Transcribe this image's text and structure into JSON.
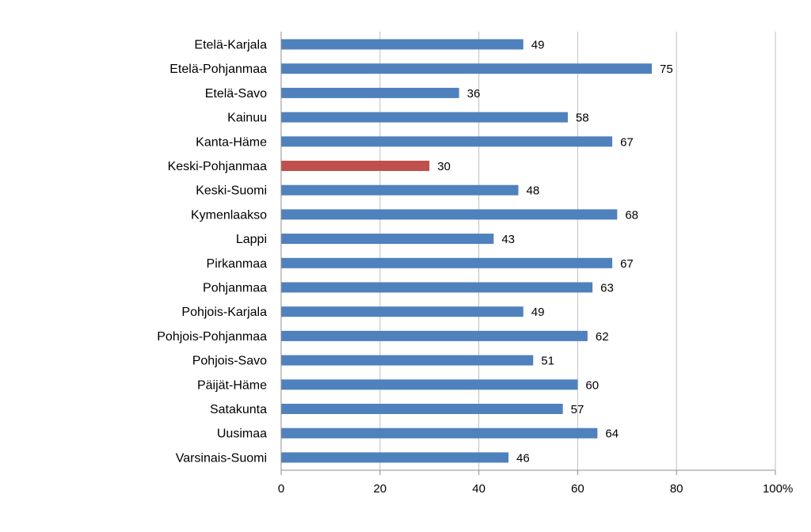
{
  "chart_data": {
    "type": "bar",
    "orientation": "horizontal",
    "title": "",
    "xlabel": "",
    "ylabel": "",
    "x_unit_label": "%",
    "xlim": [
      0,
      100
    ],
    "x_ticks": [
      "0",
      "20",
      "40",
      "60",
      "80",
      "100"
    ],
    "grid": true,
    "legend": "none",
    "categories": [
      "Etelä-Karjala",
      "Etelä-Pohjanmaa",
      "Etelä-Savo",
      "Kainuu",
      "Kanta-Häme",
      "Keski-Pohjanmaa",
      "Keski-Suomi",
      "Kymenlaakso",
      "Lappi",
      "Pirkanmaa",
      "Pohjanmaa",
      "Pohjois-Karjala",
      "Pohjois-Pohjanmaa",
      "Pohjois-Savo",
      "Päijät-Häme",
      "Satakunta",
      "Uusimaa",
      "Varsinais-Suomi"
    ],
    "values": [
      49,
      75,
      36,
      58,
      67,
      30,
      48,
      68,
      43,
      67,
      63,
      49,
      62,
      51,
      60,
      57,
      64,
      46
    ],
    "bar_color": "#4f81bd",
    "highlight_color": "#c0504d",
    "highlight_category": "Keski-Pohjanmaa"
  }
}
